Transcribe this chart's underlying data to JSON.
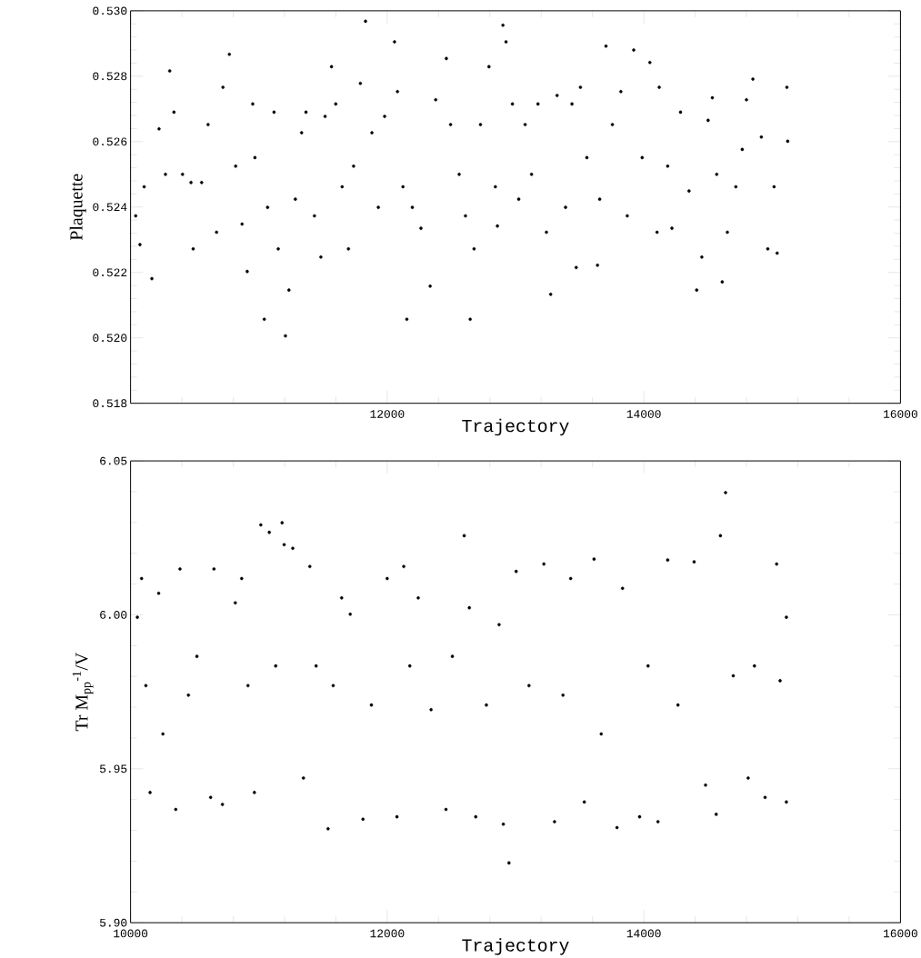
{
  "chart_data": [
    {
      "type": "scatter",
      "ylabel": "Plaquette",
      "xlabel": "Trajectory",
      "xlim": [
        10000,
        16000
      ],
      "ylim": [
        0.518,
        0.53
      ],
      "xticks": [
        {
          "value": 10000,
          "label": null
        },
        12000,
        14000,
        16000
      ],
      "yticks": [
        0.518,
        {
          "value": 0.52,
          "label": "0.520"
        },
        0.522,
        0.524,
        0.526,
        0.528,
        {
          "value": 0.53,
          "label": "0.530"
        }
      ],
      "series": [
        {
          "color": "#000000",
          "x": [
            10040,
            10073,
            10106,
            10166,
            10222,
            10272,
            10305,
            10338,
            10405,
            10471,
            10488,
            10554,
            10604,
            10670,
            10720,
            10770,
            10819,
            10869,
            10909,
            10952,
            10969,
            11042,
            11068,
            11118,
            11151,
            11207,
            11234,
            11284,
            11333,
            11367,
            11433,
            11483,
            11516,
            11566,
            11599,
            11649,
            11698,
            11738,
            11791,
            11831,
            11881,
            11931,
            11980,
            12057,
            12080,
            12123,
            12153,
            12196,
            12263,
            12335,
            12378,
            12461,
            12494,
            12561,
            12610,
            12647,
            12677,
            12727,
            12793,
            12843,
            12859,
            12902,
            12926,
            12976,
            13025,
            13075,
            13125,
            13175,
            13241,
            13274,
            13324,
            13390,
            13440,
            13473,
            13506,
            13556,
            13639,
            13656,
            13705,
            13755,
            13821,
            13871,
            13921,
            13987,
            14047,
            14103,
            14120,
            14186,
            14219,
            14286,
            14352,
            14412,
            14452,
            14501,
            14534,
            14568,
            14611,
            14651,
            14717,
            14767,
            14800,
            14850,
            14916,
            14966,
            15015,
            15039,
            15115,
            15121
          ],
          "values": [
            0.52373,
            0.52285,
            0.52462,
            0.52181,
            0.52639,
            0.525,
            0.52816,
            0.5269,
            0.525,
            0.52475,
            0.52272,
            0.52475,
            0.52652,
            0.52323,
            0.52766,
            0.52867,
            0.52525,
            0.52348,
            0.52203,
            0.52715,
            0.52551,
            0.52057,
            0.52399,
            0.5269,
            0.52272,
            0.52006,
            0.52146,
            0.52424,
            0.52627,
            0.5269,
            0.52373,
            0.52247,
            0.52677,
            0.52829,
            0.52715,
            0.52462,
            0.52272,
            0.52525,
            0.52778,
            0.52968,
            0.52627,
            0.52399,
            0.52677,
            0.52905,
            0.52753,
            0.52462,
            0.52057,
            0.52399,
            0.52335,
            0.52158,
            0.52728,
            0.52854,
            0.52652,
            0.525,
            0.52373,
            0.52057,
            0.52272,
            0.52652,
            0.52829,
            0.52462,
            0.52342,
            0.52956,
            0.52905,
            0.52715,
            0.52424,
            0.52652,
            0.525,
            0.52715,
            0.52323,
            0.52133,
            0.52741,
            0.52399,
            0.52715,
            0.52215,
            0.52766,
            0.52551,
            0.52222,
            0.52424,
            0.52892,
            0.52652,
            0.52753,
            0.52373,
            0.5288,
            0.52551,
            0.52842,
            0.52323,
            0.52766,
            0.52525,
            0.52335,
            0.5269,
            0.52449,
            0.52146,
            0.52247,
            0.52665,
            0.52734,
            0.525,
            0.52171,
            0.52323,
            0.52462,
            0.52576,
            0.52728,
            0.52791,
            0.52614,
            0.52272,
            0.52462,
            0.52259,
            0.52766,
            0.52601
          ]
        }
      ]
    },
    {
      "type": "scatter",
      "ylabel": "Tr M$_{pp}$$^{-1}$/V",
      "xlabel": "Trajectory",
      "xlim": [
        10000,
        16000
      ],
      "ylim": [
        5.9,
        6.05
      ],
      "xticks": [
        10000,
        12000,
        14000,
        16000
      ],
      "yticks": [
        {
          "value": 5.9,
          "label": "5.90"
        },
        5.95,
        {
          "value": 6.0,
          "label": "6.00"
        },
        6.05
      ],
      "series": [
        {
          "color": "#000000",
          "x": [
            10053,
            10086,
            10119,
            10152,
            10219,
            10252,
            10352,
            10385,
            10451,
            10517,
            10624,
            10650,
            10716,
            10816,
            10866,
            10915,
            10965,
            11015,
            11081,
            11131,
            11181,
            11197,
            11264,
            11347,
            11397,
            11446,
            11539,
            11579,
            11645,
            11712,
            11811,
            11877,
            12000,
            12076,
            12129,
            12176,
            12242,
            12342,
            12458,
            12508,
            12600,
            12640,
            12690,
            12773,
            12872,
            12905,
            12949,
            13005,
            13105,
            13221,
            13304,
            13370,
            13430,
            13536,
            13612,
            13668,
            13791,
            13834,
            13967,
            14033,
            14110,
            14186,
            14266,
            14392,
            14481,
            14564,
            14597,
            14637,
            14697,
            14813,
            14862,
            14945,
            15035,
            15062,
            15111,
            15111
          ],
          "values": [
            5.9992,
            6.0118,
            5.977,
            5.9423,
            6.007,
            5.9613,
            5.9368,
            6.0149,
            5.9739,
            5.9865,
            5.9407,
            6.0149,
            5.9384,
            6.0039,
            6.0118,
            5.977,
            5.9423,
            6.0292,
            6.0268,
            5.9834,
            6.0299,
            6.0228,
            6.0216,
            5.947,
            6.0157,
            5.9834,
            5.9305,
            5.977,
            6.0055,
            6.0002,
            5.9336,
            5.9707,
            6.0118,
            5.9344,
            6.0157,
            5.9834,
            6.0055,
            5.9692,
            5.9368,
            5.9865,
            6.0257,
            6.0023,
            5.9344,
            5.9707,
            5.9968,
            5.932,
            5.9194,
            6.0141,
            5.977,
            6.0165,
            5.9328,
            5.9739,
            6.0118,
            5.9392,
            6.0181,
            5.9613,
            5.9309,
            6.0086,
            5.9344,
            5.9834,
            5.9328,
            6.0178,
            5.9707,
            6.0172,
            5.9447,
            5.9352,
            6.0257,
            6.0397,
            5.9802,
            5.947,
            5.9834,
            5.9407,
            6.0165,
            5.9786,
            5.9392,
            5.9992
          ]
        }
      ]
    }
  ]
}
